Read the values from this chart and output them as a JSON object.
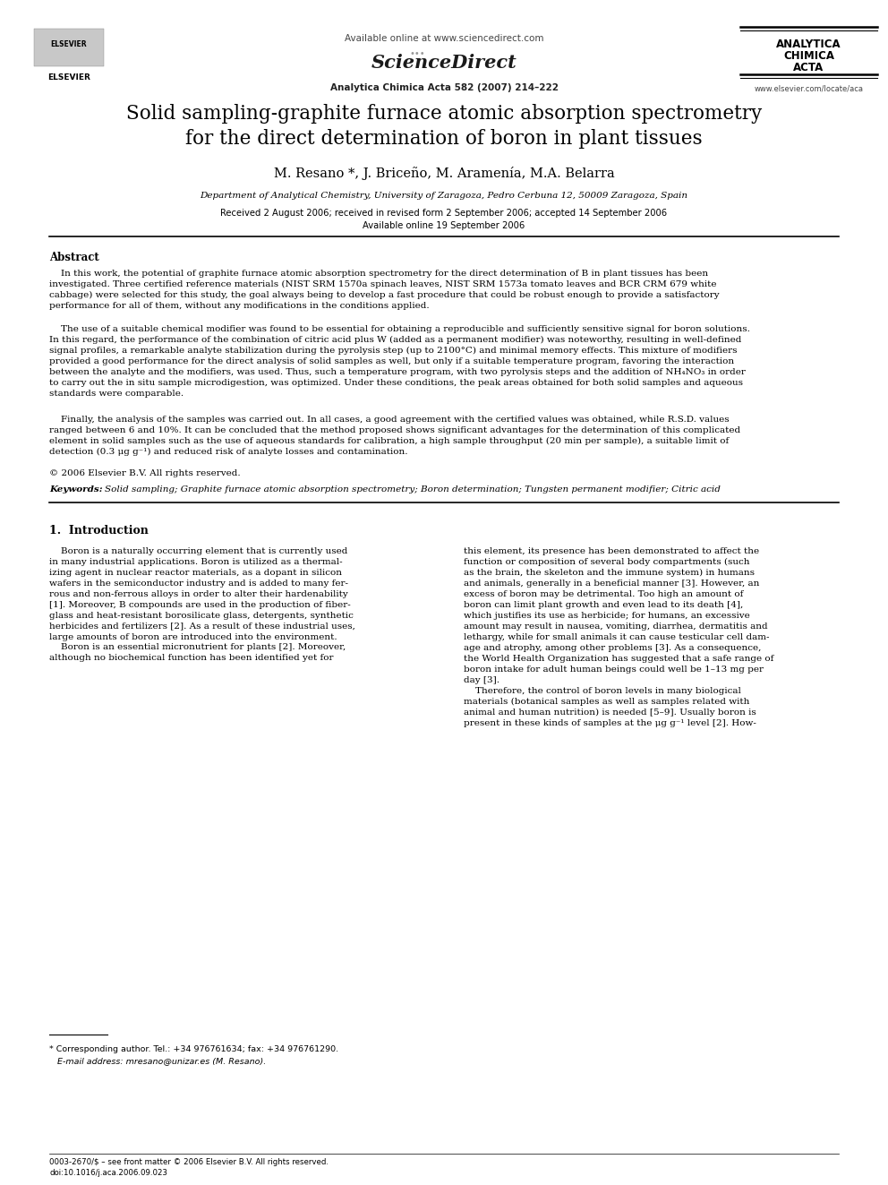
{
  "background_color": "#ffffff",
  "page_width": 9.92,
  "page_height": 13.23,
  "header": {
    "available_online_text": "Available online at www.sciencedirect.com",
    "journal_ref": "Analytica Chimica Acta 582 (2007) 214–222",
    "publisher_logo": "ELSEVIER",
    "journal_abbrev_line1": "ANALYTICA",
    "journal_abbrev_line2": "CHIMICA",
    "journal_abbrev_line3": "ACTA",
    "website": "www.elsevier.com/locate/aca"
  },
  "title_line1": "Solid sampling-graphite furnace atomic absorption spectrometry",
  "title_line2": "for the direct determination of boron in plant tissues",
  "authors": "M. Resano *, J. Briceño, M. Aramenía, M.A. Belarra",
  "affiliation": "Department of Analytical Chemistry, University of Zaragoza, Pedro Cerbuna 12, 50009 Zaragoza, Spain",
  "received": "Received 2 August 2006; received in revised form 2 September 2006; accepted 14 September 2006",
  "available_online": "Available online 19 September 2006",
  "abstract_title": "Abstract",
  "abstract_p1": "    In this work, the potential of graphite furnace atomic absorption spectrometry for the direct determination of B in plant tissues has been\ninvestigated. Three certified reference materials (NIST SRM 1570a spinach leaves, NIST SRM 1573a tomato leaves and BCR CRM 679 white\ncabbage) were selected for this study, the goal always being to develop a fast procedure that could be robust enough to provide a satisfactory\nperformance for all of them, without any modifications in the conditions applied.",
  "abstract_p2": "    The use of a suitable chemical modifier was found to be essential for obtaining a reproducible and sufficiently sensitive signal for boron solutions.\nIn this regard, the performance of the combination of citric acid plus W (added as a permanent modifier) was noteworthy, resulting in well-defined\nsignal profiles, a remarkable analyte stabilization during the pyrolysis step (up to 2100°C) and minimal memory effects. This mixture of modifiers\nprovided a good performance for the direct analysis of solid samples as well, but only if a suitable temperature program, favoring the interaction\nbetween the analyte and the modifiers, was used. Thus, such a temperature program, with two pyrolysis steps and the addition of NH₄NO₃ in order\nto carry out the in situ sample microdigestion, was optimized. Under these conditions, the peak areas obtained for both solid samples and aqueous\nstandards were comparable.",
  "abstract_p3": "    Finally, the analysis of the samples was carried out. In all cases, a good agreement with the certified values was obtained, while R.S.D. values\nranged between 6 and 10%. It can be concluded that the method proposed shows significant advantages for the determination of this complicated\nelement in solid samples such as the use of aqueous standards for calibration, a high sample throughput (20 min per sample), a suitable limit of\ndetection (0.3 μg g⁻¹) and reduced risk of analyte losses and contamination.",
  "copyright": "© 2006 Elsevier B.V. All rights reserved.",
  "keywords_label": "Keywords: ",
  "keywords": "Solid sampling; Graphite furnace atomic absorption spectrometry; Boron determination; Tungsten permanent modifier; Citric acid",
  "section1_title": "1.  Introduction",
  "intro_col1": "    Boron is a naturally occurring element that is currently used\nin many industrial applications. Boron is utilized as a thermal-\nizing agent in nuclear reactor materials, as a dopant in silicon\nwafers in the semiconductor industry and is added to many fer-\nrous and non-ferrous alloys in order to alter their hardenability\n[1]. Moreover, B compounds are used in the production of fiber-\nglass and heat-resistant borosilicate glass, detergents, synthetic\nherbicides and fertilizers [2]. As a result of these industrial uses,\nlarge amounts of boron are introduced into the environment.\n    Boron is an essential micronutrient for plants [2]. Moreover,\nalthough no biochemical function has been identified yet for",
  "intro_col2": "this element, its presence has been demonstrated to affect the\nfunction or composition of several body compartments (such\nas the brain, the skeleton and the immune system) in humans\nand animals, generally in a beneficial manner [3]. However, an\nexcess of boron may be detrimental. Too high an amount of\nboron can limit plant growth and even lead to its death [4],\nwhich justifies its use as herbicide; for humans, an excessive\namount may result in nausea, vomiting, diarrhea, dermatitis and\nlethargy, while for small animals it can cause testicular cell dam-\nage and atrophy, among other problems [3]. As a consequence,\nthe World Health Organization has suggested that a safe range of\nboron intake for adult human beings could well be 1–13 mg per\nday [3].\n    Therefore, the control of boron levels in many biological\nmaterials (botanical samples as well as samples related with\nanimal and human nutrition) is needed [5–9]. Usually boron is\npresent in these kinds of samples at the μg g⁻¹ level [2]. How-",
  "footnote_star": "* Corresponding author. Tel.: +34 976761634; fax: +34 976761290.",
  "footnote_email": "   E-mail address: mresano@unizar.es (M. Resano).",
  "footer_issn": "0003-2670/$ – see front matter © 2006 Elsevier B.V. All rights reserved.",
  "footer_doi": "doi:10.1016/j.aca.2006.09.023"
}
